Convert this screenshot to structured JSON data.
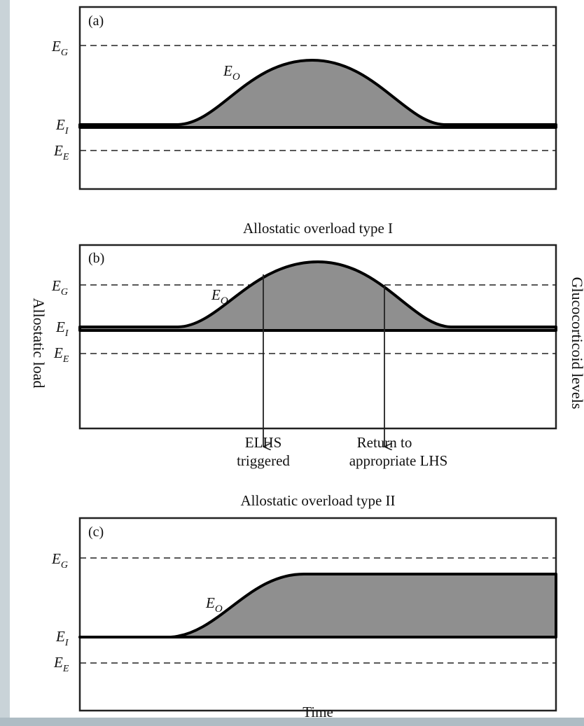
{
  "diagram": {
    "y_axis_label": "Allostatic load",
    "right_axis_label": "Glucocorticoid levels",
    "x_axis_label": "Time",
    "level_labels": {
      "EG": "G",
      "EO": "O",
      "EI": "I",
      "EE": "E",
      "E": "E"
    },
    "panels": [
      {
        "id": "a",
        "tag": "(a)",
        "title": ""
      },
      {
        "id": "b",
        "tag": "(b)",
        "title": "Allostatic overload type I",
        "arrows": [
          {
            "label_line1": "ELHS",
            "label_line2": "triggered"
          },
          {
            "label_line1": "Return to",
            "label_line2": "appropriate LHS"
          }
        ]
      },
      {
        "id": "c",
        "tag": "(c)",
        "title": "Allostatic overload type II"
      }
    ],
    "colors": {
      "fill": "#8f8f8f",
      "line": "#000000",
      "background": "#ffffff",
      "page_margin": "#c9d3d8"
    }
  }
}
